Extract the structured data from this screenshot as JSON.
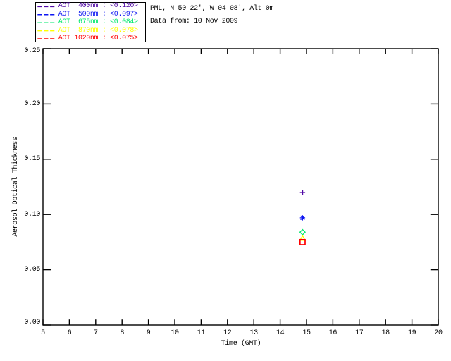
{
  "title_block": {
    "location_line": "PML, N 50 22', W 04 08', Alt 0m",
    "date_line": "Data from: 10 Nov 2009"
  },
  "chart_data": {
    "type": "scatter",
    "title": "",
    "xlabel": "Time (GMT)",
    "ylabel": "Aerosol Optical Thickness",
    "xlim": [
      5,
      20
    ],
    "ylim": [
      0.0,
      0.25
    ],
    "xticks": [
      5,
      6,
      7,
      8,
      9,
      10,
      11,
      12,
      13,
      14,
      15,
      16,
      17,
      18,
      19,
      20
    ],
    "xtick_labels": [
      "5",
      "6",
      "7",
      "8",
      "9",
      "10",
      "11",
      "12",
      "13",
      "14",
      "15",
      "16",
      "17",
      "18",
      "19",
      "20"
    ],
    "yticks": [
      0.0,
      0.05,
      0.1,
      0.15,
      0.2,
      0.25
    ],
    "ytick_labels": [
      "0.00",
      "0.05",
      "0.10",
      "0.15",
      "0.20",
      "0.25"
    ],
    "grid": false,
    "legend_position": "top-left",
    "legend_line_style": "dashed",
    "series": [
      {
        "name": "AOT 400nm",
        "wavelength_nm": 400,
        "legend_label": "AOT  400nm : <0.120>",
        "mean_aot": 0.12,
        "color": "#5109A5",
        "marker": "plus",
        "points": [
          [
            14.85,
            0.12
          ]
        ]
      },
      {
        "name": "AOT 500nm",
        "wavelength_nm": 500,
        "legend_label": "AOT  500nm : <0.097>",
        "mean_aot": 0.097,
        "color": "#0D16F2",
        "marker": "asterisk",
        "points": [
          [
            14.85,
            0.097
          ]
        ]
      },
      {
        "name": "AOT 675nm",
        "wavelength_nm": 675,
        "legend_label": "AOT  675nm : <0.084>",
        "mean_aot": 0.084,
        "color": "#00E86C",
        "marker": "diamond",
        "points": [
          [
            14.85,
            0.084
          ]
        ]
      },
      {
        "name": "AOT 870nm",
        "wavelength_nm": 870,
        "legend_label": "AOT  870nm : <0.078>",
        "mean_aot": 0.078,
        "color": "#FFFF00",
        "marker": "triangle",
        "points": [
          [
            14.85,
            0.078
          ]
        ]
      },
      {
        "name": "AOT 1020nm",
        "wavelength_nm": 1020,
        "legend_label": "AOT 1020nm : <0.075>",
        "mean_aot": 0.075,
        "color": "#FF0000",
        "marker": "square",
        "points": [
          [
            14.85,
            0.075
          ]
        ]
      }
    ]
  },
  "colors": {
    "axis": "#000000",
    "background": "#FFFFFF",
    "text": "#000000"
  }
}
